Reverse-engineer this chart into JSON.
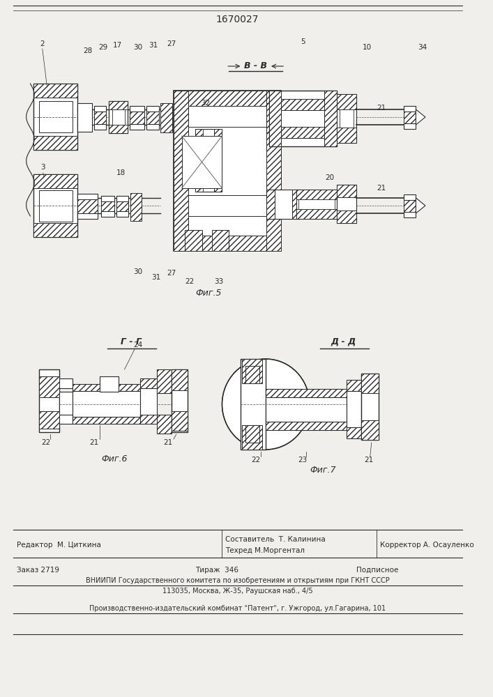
{
  "patent_number": "1670027",
  "background_color": "#f0efeb",
  "line_color": "#2a2a2a",
  "fig5_label": "Фиг.5",
  "fig6_label": "Фиг.6",
  "fig7_label": "Фиг.7",
  "section_BB": "В - В",
  "section_GG": "Г - Г",
  "section_DD": "Д - Д",
  "editor_line": "Редактор  М. Циткина",
  "composer_line": "Составитель  Т. Калинина",
  "techred_line": "Техред М.Моргентал",
  "corrector_line": "Корректор А. Осауленко",
  "order_line": "Заказ 2719",
  "tiraz_line": "Тираж  346",
  "podpisnoe_line": "Подписное",
  "vnipi_line": "ВНИИПИ Государственного комитета по изобретениям и открытиям при ГКНТ СССР",
  "address_line": "113035, Москва, Ж-35, Раушская наб., 4/5",
  "publisher_line": "Производственно-издательский комбинат \"Патент\", г. Ужгород, ул.Гагарина, 101"
}
